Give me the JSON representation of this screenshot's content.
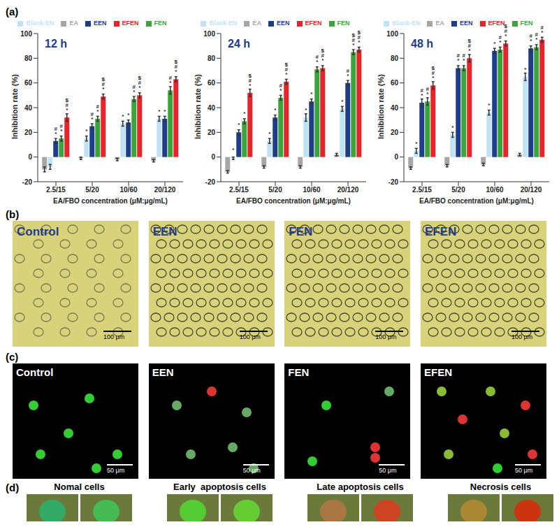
{
  "chart_data": [
    {
      "type": "bar",
      "title": "12 h",
      "x_label": "EA/FBO concentration (μM:μg/mL)",
      "y_label": "Inhibition rate (%)",
      "categories": [
        "2.5/15",
        "5/20",
        "10/60",
        "20/120"
      ],
      "ylim": [
        -20,
        100
      ],
      "yticks": [
        -20,
        0,
        20,
        40,
        60,
        80,
        100
      ],
      "legend": "top",
      "series": [
        {
          "name": "EA",
          "color": "#a6a6a6",
          "values": [
            -10,
            -1,
            -2,
            -3
          ],
          "errors": [
            2,
            1,
            1,
            1
          ],
          "significance": [
            null,
            null,
            null,
            null
          ]
        },
        {
          "name": "Blank-EN",
          "color": "#bfe3f5",
          "values": [
            -8,
            15,
            27,
            31
          ],
          "errors": [
            2,
            2,
            2,
            2
          ],
          "significance": [
            null,
            "*",
            "*",
            "*"
          ]
        },
        {
          "name": "EEN",
          "color": "#1f3c88",
          "values": [
            13,
            25,
            28,
            31
          ],
          "errors": [
            2,
            2,
            2,
            2
          ],
          "significance": [
            "*#",
            "*#",
            "*",
            "*"
          ]
        },
        {
          "name": "FEN",
          "color": "#3aa53a",
          "values": [
            15,
            31,
            47,
            54
          ],
          "errors": [
            2,
            2,
            2,
            3
          ],
          "significance": [
            "*#",
            "*#",
            "*#",
            "*#"
          ]
        },
        {
          "name": "EFEN",
          "color": "#e8242a",
          "values": [
            32,
            49,
            50,
            63
          ],
          "errors": [
            3,
            2,
            2,
            2
          ],
          "significance": [
            "*#$",
            "*#$",
            "*#$",
            "*#$"
          ]
        }
      ]
    },
    {
      "type": "bar",
      "title": "24 h",
      "x_label": "EA/FBO concentration (μM:μg/mL)",
      "y_label": "Inhibition rate (%)",
      "categories": [
        "2.5/15",
        "5/20",
        "10/60",
        "20/120"
      ],
      "ylim": [
        -20,
        100
      ],
      "yticks": [
        -20,
        0,
        20,
        40,
        60,
        80,
        100
      ],
      "legend": "top",
      "series": [
        {
          "name": "EA",
          "color": "#a6a6a6",
          "values": [
            -12,
            -8,
            -8,
            2
          ],
          "errors": [
            1,
            1,
            1,
            1
          ],
          "significance": [
            null,
            null,
            null,
            null
          ]
        },
        {
          "name": "Blank-EN",
          "color": "#bfe3f5",
          "values": [
            -1,
            13,
            32,
            39
          ],
          "errors": [
            1,
            2,
            3,
            2
          ],
          "significance": [
            "*",
            "*",
            "*",
            "*"
          ]
        },
        {
          "name": "EEN",
          "color": "#1f3c88",
          "values": [
            20,
            32,
            45,
            60
          ],
          "errors": [
            2,
            2,
            2,
            2
          ],
          "significance": [
            "*",
            "*",
            "*",
            "*#"
          ]
        },
        {
          "name": "FEN",
          "color": "#3aa53a",
          "values": [
            29,
            48,
            71,
            85
          ],
          "errors": [
            2,
            2,
            2,
            2
          ],
          "significance": [
            "*",
            "*#",
            "*#",
            "*#$"
          ]
        },
        {
          "name": "EFEN",
          "color": "#e8242a",
          "values": [
            52,
            61,
            72,
            87
          ],
          "errors": [
            3,
            2,
            2,
            2
          ],
          "significance": [
            "*#$",
            "*#$",
            "*#$",
            "*#$"
          ]
        }
      ]
    },
    {
      "type": "bar",
      "title": "48 h",
      "x_label": "EA/FBO concentration (μM:μg/mL)",
      "y_label": "Inhibition rate (%)",
      "categories": [
        "2.5/15",
        "5/20",
        "10/60",
        "20/120"
      ],
      "ylim": [
        -20,
        100
      ],
      "yticks": [
        -20,
        0,
        20,
        40,
        60,
        80,
        100
      ],
      "legend": "top",
      "series": [
        {
          "name": "EA",
          "color": "#a6a6a6",
          "values": [
            -9,
            -7,
            -6,
            2
          ],
          "errors": [
            1,
            1,
            1,
            1
          ],
          "significance": [
            null,
            null,
            null,
            null
          ]
        },
        {
          "name": "Blank-EN",
          "color": "#bfe3f5",
          "values": [
            5,
            18,
            36,
            65
          ],
          "errors": [
            2,
            2,
            2,
            3
          ],
          "significance": [
            "*",
            "*",
            "*",
            "*"
          ]
        },
        {
          "name": "EEN",
          "color": "#1f3c88",
          "values": [
            44,
            72,
            86,
            88
          ],
          "errors": [
            3,
            2,
            2,
            2
          ],
          "significance": [
            "*#",
            "*#",
            "*",
            "*#"
          ]
        },
        {
          "name": "FEN",
          "color": "#3aa53a",
          "values": [
            45,
            72,
            87,
            89
          ],
          "errors": [
            3,
            2,
            2,
            2
          ],
          "significance": [
            "*#",
            "*#",
            "*#",
            "*#"
          ]
        },
        {
          "name": "EFEN",
          "color": "#e8242a",
          "values": [
            58,
            80,
            92,
            95
          ],
          "errors": [
            3,
            3,
            2,
            2
          ],
          "significance": [
            "*#$",
            "*#$",
            "*#$",
            "*#"
          ]
        }
      ]
    }
  ],
  "panel_labels": [
    "(a)",
    "(b)",
    "(c)",
    "(d)"
  ],
  "panel_b": {
    "images": [
      {
        "label": "Control",
        "scale_bar": "100 μm"
      },
      {
        "label": "EEN",
        "scale_bar": "100 μm"
      },
      {
        "label": "FEN",
        "scale_bar": "100 μm"
      },
      {
        "label": "EFEN",
        "scale_bar": "100 μm"
      }
    ]
  },
  "panel_c": {
    "images": [
      {
        "label": "Control",
        "scale_bar": "50 μm"
      },
      {
        "label": "EEN",
        "scale_bar": "50 μm"
      },
      {
        "label": "FEN",
        "scale_bar": "50 μm"
      },
      {
        "label": "EFEN",
        "scale_bar": "50 μm"
      }
    ]
  },
  "panel_d": {
    "groups": [
      "Nomal cells",
      "Early  apoptosis cells",
      "Late apoptosis cells",
      "Necrosis cells"
    ]
  }
}
